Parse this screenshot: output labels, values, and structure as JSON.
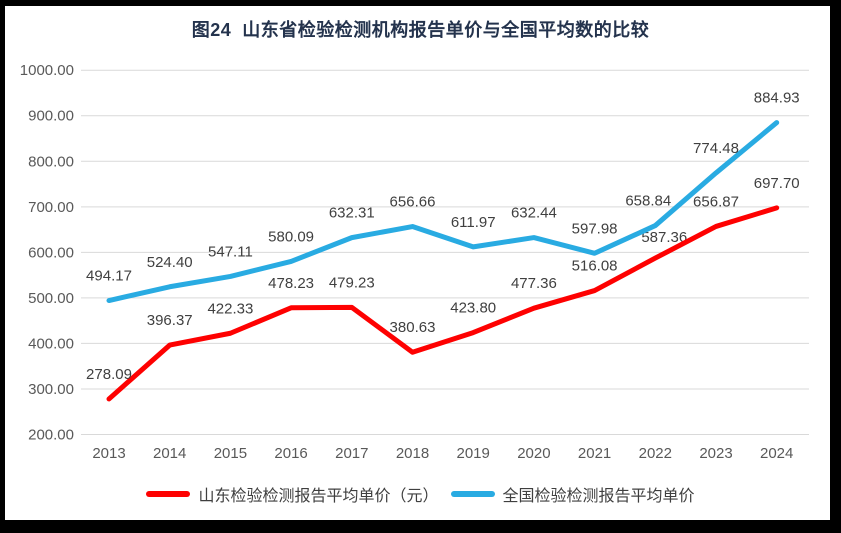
{
  "window": {
    "title": "图24  山东省检验检测机构报告单价与全国平均数的比较"
  },
  "chart_data": {
    "type": "line",
    "title": "图24  山东省检验检测机构报告单价与全国平均数的比较",
    "categories": [
      "2013",
      "2014",
      "2015",
      "2016",
      "2017",
      "2018",
      "2019",
      "2020",
      "2021",
      "2022",
      "2023",
      "2024"
    ],
    "series": [
      {
        "name": "山东检验检测报告平均单价（元）",
        "color": "#fe0101",
        "values": [
          278.09,
          396.37,
          422.33,
          478.23,
          479.23,
          380.63,
          423.8,
          477.36,
          516.08,
          587.36,
          656.87,
          697.7
        ]
      },
      {
        "name": "全国检验检测报告平均单价",
        "color": "#29abe2",
        "values": [
          494.17,
          524.4,
          547.11,
          580.09,
          632.31,
          656.66,
          611.97,
          632.44,
          597.98,
          658.84,
          774.48,
          884.93
        ]
      }
    ],
    "y_ticks": [
      "200.00",
      "300.00",
      "400.00",
      "500.00",
      "600.00",
      "700.00",
      "800.00",
      "900.00",
      "1000.00"
    ],
    "ylim": [
      200,
      1000
    ],
    "xlabel": "",
    "ylabel": "",
    "grid": true,
    "data_labels": true,
    "legend_position": "bottom"
  },
  "colors": {
    "frame": "#000000",
    "background": "#ffffff",
    "grid": "#d9d9d9",
    "axis_text": "#595959",
    "label_text": "#404040",
    "title_text": "#24334d"
  }
}
